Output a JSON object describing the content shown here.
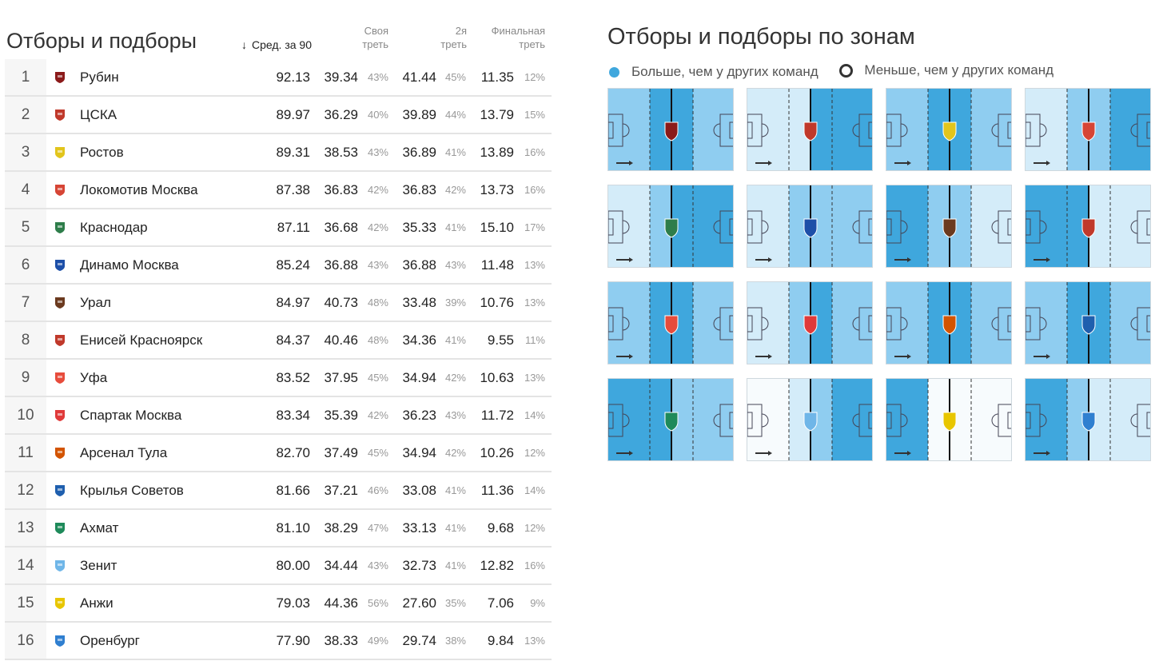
{
  "left": {
    "title": "Отборы и подборы",
    "headers": {
      "avg_icon": "sort-down-arrow-icon",
      "avg": "Сред. за 90",
      "own": [
        "Своя",
        "треть"
      ],
      "mid": [
        "2я",
        "треть"
      ],
      "fin": [
        "Финальная",
        "треть"
      ]
    },
    "rows": [
      {
        "rank": "1",
        "team": "Рубин",
        "avg": "92.13",
        "own": "39.34",
        "own_pct": "43%",
        "mid": "41.44",
        "mid_pct": "45%",
        "fin": "11.35",
        "fin_pct": "12%",
        "logo_color": "#8b1a1a"
      },
      {
        "rank": "2",
        "team": "ЦСКА",
        "avg": "89.97",
        "own": "36.29",
        "own_pct": "40%",
        "mid": "39.89",
        "mid_pct": "44%",
        "fin": "13.79",
        "fin_pct": "15%",
        "logo_color": "#c0392b"
      },
      {
        "rank": "3",
        "team": "Ростов",
        "avg": "89.31",
        "own": "38.53",
        "own_pct": "43%",
        "mid": "36.89",
        "mid_pct": "41%",
        "fin": "13.89",
        "fin_pct": "16%",
        "logo_color": "#e2c51c"
      },
      {
        "rank": "4",
        "team": "Локомотив Москва",
        "avg": "87.38",
        "own": "36.83",
        "own_pct": "42%",
        "mid": "36.83",
        "mid_pct": "42%",
        "fin": "13.73",
        "fin_pct": "16%",
        "logo_color": "#d64535"
      },
      {
        "rank": "5",
        "team": "Краснодар",
        "avg": "87.11",
        "own": "36.68",
        "own_pct": "42%",
        "mid": "35.33",
        "mid_pct": "41%",
        "fin": "15.10",
        "fin_pct": "17%",
        "logo_color": "#2e7d4a"
      },
      {
        "rank": "6",
        "team": "Динамо Москва",
        "avg": "85.24",
        "own": "36.88",
        "own_pct": "43%",
        "mid": "36.88",
        "mid_pct": "43%",
        "fin": "11.48",
        "fin_pct": "13%",
        "logo_color": "#1d4fa8"
      },
      {
        "rank": "7",
        "team": "Урал",
        "avg": "84.97",
        "own": "40.73",
        "own_pct": "48%",
        "mid": "33.48",
        "mid_pct": "39%",
        "fin": "10.76",
        "fin_pct": "13%",
        "logo_color": "#6b3a1f"
      },
      {
        "rank": "8",
        "team": "Енисей Красноярск",
        "avg": "84.37",
        "own": "40.46",
        "own_pct": "48%",
        "mid": "34.36",
        "mid_pct": "41%",
        "fin": "9.55",
        "fin_pct": "11%",
        "logo_color": "#c0392b"
      },
      {
        "rank": "9",
        "team": "Уфа",
        "avg": "83.52",
        "own": "37.95",
        "own_pct": "45%",
        "mid": "34.94",
        "mid_pct": "42%",
        "fin": "10.63",
        "fin_pct": "13%",
        "logo_color": "#e74c3c"
      },
      {
        "rank": "10",
        "team": "Спартак Москва",
        "avg": "83.34",
        "own": "35.39",
        "own_pct": "42%",
        "mid": "36.23",
        "mid_pct": "43%",
        "fin": "11.72",
        "fin_pct": "14%",
        "logo_color": "#e03a3a"
      },
      {
        "rank": "11",
        "team": "Арсенал Тула",
        "avg": "82.70",
        "own": "37.49",
        "own_pct": "45%",
        "mid": "34.94",
        "mid_pct": "42%",
        "fin": "10.26",
        "fin_pct": "12%",
        "logo_color": "#d35400"
      },
      {
        "rank": "12",
        "team": "Крылья Советов",
        "avg": "81.66",
        "own": "37.21",
        "own_pct": "46%",
        "mid": "33.08",
        "mid_pct": "41%",
        "fin": "11.36",
        "fin_pct": "14%",
        "logo_color": "#1f5fae"
      },
      {
        "rank": "13",
        "team": "Ахмат",
        "avg": "81.10",
        "own": "38.29",
        "own_pct": "47%",
        "mid": "33.13",
        "mid_pct": "41%",
        "fin": "9.68",
        "fin_pct": "12%",
        "logo_color": "#1e8a5a"
      },
      {
        "rank": "14",
        "team": "Зенит",
        "avg": "80.00",
        "own": "34.44",
        "own_pct": "43%",
        "mid": "32.73",
        "mid_pct": "41%",
        "fin": "12.82",
        "fin_pct": "16%",
        "logo_color": "#6fb6e8"
      },
      {
        "rank": "15",
        "team": "Анжи",
        "avg": "79.03",
        "own": "44.36",
        "own_pct": "56%",
        "mid": "27.60",
        "mid_pct": "35%",
        "fin": "7.06",
        "fin_pct": "9%",
        "logo_color": "#e8c600"
      },
      {
        "rank": "16",
        "team": "Оренбург",
        "avg": "77.90",
        "own": "38.33",
        "own_pct": "49%",
        "mid": "29.74",
        "mid_pct": "38%",
        "fin": "9.84",
        "fin_pct": "13%",
        "logo_color": "#2f7fd0"
      }
    ]
  },
  "right": {
    "title": "Отборы и подборы по зонам",
    "legend_more": "Больше, чем у других команд",
    "legend_less": "Меньше, чем у других команд",
    "colors": {
      "dark": "#3fa7dd",
      "mid": "#8fcdf0",
      "light": "#d4ecf9",
      "white": "#f7fbfd"
    },
    "pitch_zones": [
      [
        "mid",
        "dark",
        "dark",
        "mid"
      ],
      [
        "light",
        "light",
        "dark",
        "dark"
      ],
      [
        "mid",
        "dark",
        "dark",
        "mid"
      ],
      [
        "light",
        "mid",
        "mid",
        "dark"
      ],
      [
        "light",
        "mid",
        "dark",
        "dark"
      ],
      [
        "light",
        "mid",
        "mid",
        "mid"
      ],
      [
        "dark",
        "mid",
        "mid",
        "light"
      ],
      [
        "dark",
        "dark",
        "light",
        "light"
      ],
      [
        "mid",
        "dark",
        "dark",
        "mid"
      ],
      [
        "light",
        "mid",
        "dark",
        "mid"
      ],
      [
        "mid",
        "dark",
        "dark",
        "mid"
      ],
      [
        "mid",
        "dark",
        "dark",
        "mid"
      ],
      [
        "dark",
        "dark",
        "mid",
        "mid"
      ],
      [
        "white",
        "light",
        "mid",
        "dark"
      ],
      [
        "dark",
        "white",
        "white",
        "white"
      ],
      [
        "dark",
        "mid",
        "light",
        "light"
      ]
    ]
  },
  "chart_data": {
    "type": "table",
    "title": "Отборы и подборы",
    "columns": [
      "Сред. за 90",
      "Своя треть",
      "2я треть",
      "Финальная треть"
    ],
    "categories": [
      "Рубин",
      "ЦСКА",
      "Ростов",
      "Локомотив Москва",
      "Краснодар",
      "Динамо Москва",
      "Урал",
      "Енисей Красноярск",
      "Уфа",
      "Спартак Москва",
      "Арсенал Тула",
      "Крылья Советов",
      "Ахмат",
      "Зенит",
      "Анжи",
      "Оренбург"
    ],
    "series": [
      {
        "name": "Сред. за 90",
        "values": [
          92.13,
          89.97,
          89.31,
          87.38,
          87.11,
          85.24,
          84.97,
          84.37,
          83.52,
          83.34,
          82.7,
          81.66,
          81.1,
          80.0,
          79.03,
          77.9
        ]
      },
      {
        "name": "Своя треть",
        "values": [
          39.34,
          36.29,
          38.53,
          36.83,
          36.68,
          36.88,
          40.73,
          40.46,
          37.95,
          35.39,
          37.49,
          37.21,
          38.29,
          34.44,
          44.36,
          38.33
        ]
      },
      {
        "name": "2я треть",
        "values": [
          41.44,
          39.89,
          36.89,
          36.83,
          35.33,
          36.88,
          33.48,
          34.36,
          34.94,
          36.23,
          34.94,
          33.08,
          33.13,
          32.73,
          27.6,
          29.74
        ]
      },
      {
        "name": "Финальная треть",
        "values": [
          11.35,
          13.79,
          13.89,
          13.73,
          15.1,
          11.48,
          10.76,
          9.55,
          10.63,
          11.72,
          10.26,
          11.36,
          9.68,
          12.82,
          7.06,
          9.84
        ]
      }
    ]
  }
}
